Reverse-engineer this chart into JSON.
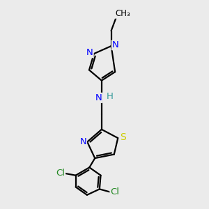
{
  "background_color": "#ebebeb",
  "atom_colors": {
    "N": "#0000ff",
    "S": "#cccc00",
    "Cl": "#228822",
    "C": "#000000",
    "H": "#339999"
  },
  "bond_color": "#000000",
  "bond_width": 1.6,
  "fontsize": 9.5
}
